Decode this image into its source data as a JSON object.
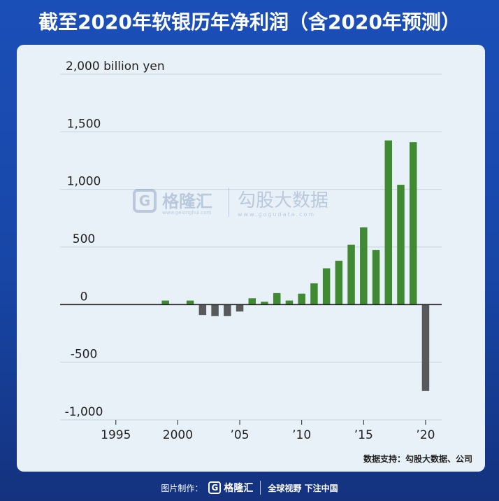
{
  "header": {
    "title": "截至2020年软银历年净利润（含2020年预测）"
  },
  "chart_data": {
    "type": "bar",
    "title": "",
    "xlabel": "",
    "ylabel": "",
    "y_unit_label": "2,000 billion yen",
    "ylim": [
      -1000,
      2000
    ],
    "y_ticks": [
      {
        "value": 2000,
        "label": ""
      },
      {
        "value": 1500,
        "label": "1,500"
      },
      {
        "value": 1000,
        "label": "1,000"
      },
      {
        "value": 500,
        "label": "500"
      },
      {
        "value": 0,
        "label": "0"
      },
      {
        "value": -500,
        "label": "-500"
      },
      {
        "value": -1000,
        "label": "-1,000"
      }
    ],
    "x_ticks": [
      {
        "value": 1995,
        "label": "1995"
      },
      {
        "value": 2000,
        "label": "2000"
      },
      {
        "value": 2005,
        "label": "’05"
      },
      {
        "value": 2010,
        "label": "’10"
      },
      {
        "value": 2015,
        "label": "’15"
      },
      {
        "value": 2020,
        "label": "’20"
      }
    ],
    "grid": "horizontal",
    "colors": {
      "positive": "#3f8a32",
      "negative": "#58595b",
      "grid": "#c9d3dc",
      "axis": "#222222"
    },
    "x": [
      1999,
      2000,
      2001,
      2002,
      2003,
      2004,
      2005,
      2006,
      2007,
      2008,
      2009,
      2010,
      2011,
      2012,
      2013,
      2014,
      2015,
      2016,
      2017,
      2018,
      2019,
      2020
    ],
    "values": [
      35,
      0,
      35,
      -90,
      -100,
      -100,
      -60,
      55,
      25,
      100,
      35,
      95,
      185,
      315,
      380,
      520,
      670,
      475,
      1425,
      1040,
      1410,
      -750
    ]
  },
  "source": {
    "text": "数据支持：勾股大数据、公司"
  },
  "watermark": {
    "brand": "格隆汇",
    "brand_url": "www.gelonghui.com",
    "brand2": "勾股大数据",
    "brand2_url": "www.gogudata.com",
    "logo_letter": "G"
  },
  "footer": {
    "made_by": "图片制作：",
    "logo_letter": "G",
    "brand": "格隆汇",
    "slogan": "全球视野 下注中国"
  }
}
